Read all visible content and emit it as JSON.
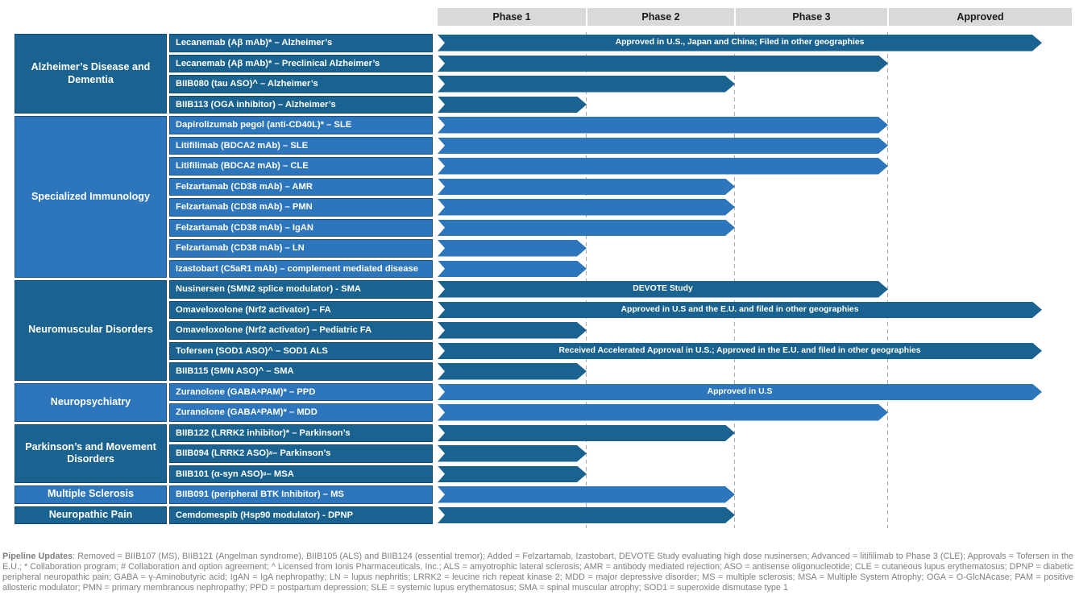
{
  "colors": {
    "dark_blue": "#1A6390",
    "light_blue": "#2E76BB",
    "header_gray": "#D9D9D9",
    "gridline_gray": "#ABABAB",
    "footer_gray": "#808080"
  },
  "chart_data": {
    "type": "bar",
    "subtype": "pipeline-phase-progress",
    "orientation": "horizontal",
    "columns": [
      "Phase 1",
      "Phase 2",
      "Phase 3",
      "Approved"
    ],
    "legend_position": "none",
    "grid": "dashed vertical lines at phase boundaries",
    "sections": [
      {
        "name": "Alzheimer’s Disease and Dementia",
        "tone": "dark",
        "rows": [
          {
            "label": "Lecanemab (Aβ mAb)* – Alzheimer’s",
            "phase_reached": "Approved",
            "annotation": "Approved in U.S., Japan and China; Filed in other geographies"
          },
          {
            "label": "Lecanemab (Aβ mAb)* – Preclinical Alzheimer’s",
            "phase_reached": "Phase 3",
            "annotation": ""
          },
          {
            "label": "BIIB080 (tau ASO)^ – Alzheimer’s",
            "phase_reached": "Phase 2",
            "annotation": ""
          },
          {
            "label": "BIIB113 (OGA inhibitor) – Alzheimer’s",
            "phase_reached": "Phase 1",
            "annotation": ""
          }
        ]
      },
      {
        "name": "Specialized Immunology",
        "tone": "light",
        "rows": [
          {
            "label": "Dapirolizumab pegol (anti-CD40L)* – SLE",
            "phase_reached": "Phase 3",
            "annotation": ""
          },
          {
            "label": "Litifilimab (BDCA2 mAb) – SLE",
            "phase_reached": "Phase 3",
            "annotation": ""
          },
          {
            "label": "Litifilimab (BDCA2 mAb) – CLE",
            "phase_reached": "Phase 3",
            "annotation": ""
          },
          {
            "label": "Felzartamab (CD38 mAb) – AMR",
            "phase_reached": "Phase 2",
            "annotation": ""
          },
          {
            "label": "Felzartamab (CD38 mAb) – PMN",
            "phase_reached": "Phase 2",
            "annotation": ""
          },
          {
            "label": "Felzartamab (CD38 mAb) – IgAN",
            "phase_reached": "Phase 2",
            "annotation": ""
          },
          {
            "label": "Felzartamab (CD38 mAb)  – LN",
            "phase_reached": "Phase 1",
            "annotation": ""
          },
          {
            "label": "Izastobart (C5aR1 mAb) – complement mediated disease",
            "phase_reached": "Phase 1",
            "annotation": ""
          }
        ]
      },
      {
        "name": "Neuromuscular Disorders",
        "tone": "dark",
        "rows": [
          {
            "label": "Nusinersen (SMN2 splice modulator) - SMA",
            "phase_reached": "Phase 3",
            "annotation": "DEVOTE Study"
          },
          {
            "label": "Omaveloxolone (Nrf2 activator) – FA",
            "phase_reached": "Approved",
            "annotation": "Approved in U.S and the E.U. and filed in other geographies"
          },
          {
            "label": "Omaveloxolone (Nrf2 activator) – Pediatric FA",
            "phase_reached": "Phase 1",
            "annotation": ""
          },
          {
            "label": "Tofersen (SOD1 ASO)^ – SOD1 ALS",
            "phase_reached": "Approved",
            "annotation": "Received Accelerated Approval in U.S.; Approved in the E.U. and filed in other geographies"
          },
          {
            "label": "BIIB115 (SMN ASO)^ – SMA",
            "phase_reached": "Phase 1",
            "annotation": ""
          }
        ]
      },
      {
        "name": "Neuropsychiatry",
        "tone": "light",
        "rows": [
          {
            "label": "Zuranolone (GABA_{A} PAM)* – PPD",
            "phase_reached": "Approved",
            "annotation": "Approved in U.S"
          },
          {
            "label": "Zuranolone (GABA_{A} PAM)* – MDD",
            "phase_reached": "Phase 3",
            "annotation": ""
          }
        ]
      },
      {
        "name": "Parkinson’s and Movement Disorders",
        "tone": "dark",
        "rows": [
          {
            "label": "BIIB122 (LRRK2 inhibitor)* – Parkinson’s",
            "phase_reached": "Phase 2",
            "annotation": ""
          },
          {
            "label": "BIIB094 (LRRK2 ASO)^{#} – Parkinson’s",
            "phase_reached": "Phase 1",
            "annotation": ""
          },
          {
            "label": "BIIB101 (α-syn ASO)^{#} – MSA",
            "phase_reached": "Phase 1",
            "annotation": ""
          }
        ]
      },
      {
        "name": "Multiple Sclerosis",
        "tone": "light",
        "rows": [
          {
            "label": "BIIB091 (peripheral BTK Inhibitor) – MS",
            "phase_reached": "Phase 2",
            "annotation": ""
          }
        ]
      },
      {
        "name": "Neuropathic Pain",
        "tone": "dark",
        "rows": [
          {
            "label": "Cemdomespib (Hsp90 modulator) - DPNP",
            "phase_reached": "Phase 2",
            "annotation": ""
          }
        ]
      }
    ]
  },
  "footer": {
    "lead": "Pipeline Updates",
    "text": ": Removed = BIIB107 (MS), BIIB121 (Angelman syndrome), BIIB105 (ALS) and BIIB124 (essential tremor); Added = Felzartamab, Izastobart, DEVOTE Study evaluating high dose nusinersen; Advanced = litifilimab to Phase 3 (CLE); Approvals = Tofersen in the E.U.; * Collaboration program; # Collaboration and option agreement; ^ Licensed from Ionis Pharmaceuticals, Inc.; ALS = amyotrophic lateral sclerosis; AMR = antibody mediated rejection; ASO = antisense oligonucleotide; CLE = cutaneous lupus erythematosus; DPNP = diabetic peripheral neuropathic pain; GABA = γ-Aminobutyric acid; IgAN = IgA nephropathy; LN = lupus nephritis; LRRK2 = leucine rich repeat kinase 2; MDD = major depressive disorder; MS = multiple sclerosis; MSA = Multiple System Atrophy; OGA = O-GlcNAcase; PAM = positive allosteric modulator; PMN = primary membranous nephropathy; PPD = postpartum depression; SLE = systemic lupus erythematosus; SMA = spinal muscular atrophy; SOD1 = superoxide dismutase type 1"
  }
}
